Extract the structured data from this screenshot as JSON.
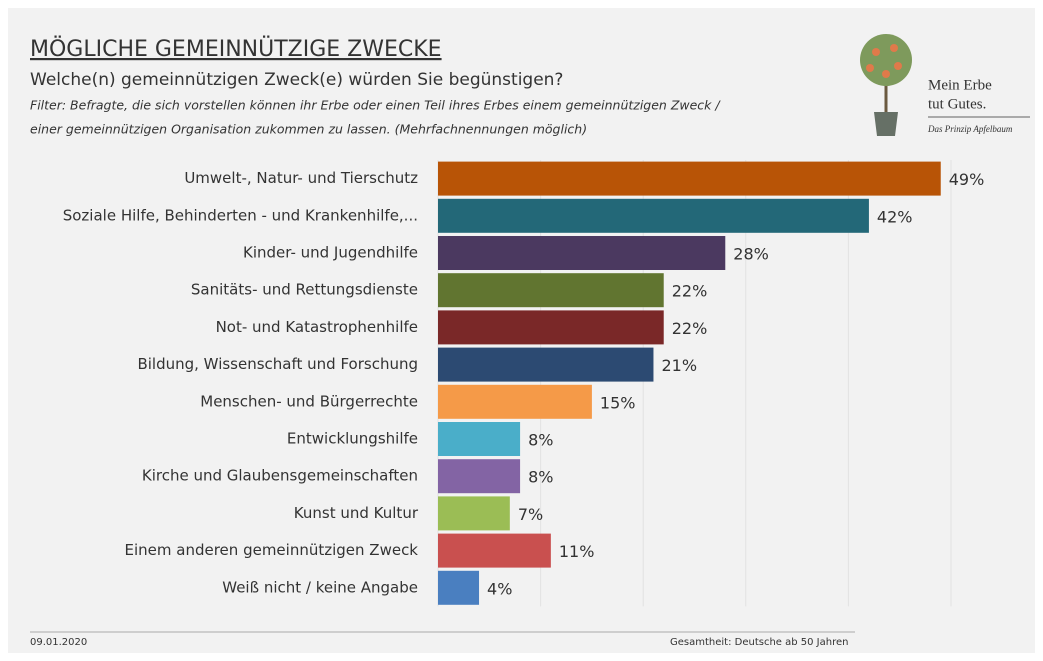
{
  "header": {
    "title": "MÖGLICHE GEMEINNÜTZIGE ZWECKE",
    "subtitle": "Welche(n) gemeinnützigen Zweck(e) würden Sie begünstigen?",
    "filter": [
      "Filter: Befragte, die sich vorstellen können ihr Erbe oder einen Teil ihres Erbes einem gemeinnützigen Zweck /",
      "einer gemeinnützigen Organisation zukommen zu lassen. (Mehrfachnennungen möglich)"
    ],
    "logo": [
      "Mein Erbe",
      "tut Gutes.",
      "Das Prinzip Apfelbaum"
    ]
  },
  "chart_data": {
    "type": "hbar",
    "categories": [
      "Umwelt-, Natur- und Tierschutz",
      "Soziale Hilfe, Behinderten - und Krankenhilfe,...",
      "Kinder- und Jugendhilfe",
      "Sanitäts- und Rettungsdienste",
      "Not- und Katastrophenhilfe",
      "Bildung, Wissenschaft und Forschung",
      "Menschen- und Bürgerrechte",
      "Entwicklungshilfe",
      "Kirche und Glaubensgemeinschaften",
      "Kunst und Kultur",
      "Einem anderen gemeinnützigen Zweck",
      "Weiß nicht / keine Angabe"
    ],
    "values": [
      49,
      42,
      28,
      22,
      22,
      21,
      15,
      8,
      8,
      7,
      11,
      4
    ],
    "value_labels": [
      "49%",
      "42%",
      "28%",
      "22%",
      "22%",
      "21%",
      "15%",
      "8%",
      "8%",
      "7%",
      "11%",
      "4%"
    ],
    "colors": [
      "#b85406",
      "#236878",
      "#4b3960",
      "#617530",
      "#7a2828",
      "#2c4a72",
      "#f59a48",
      "#4aaec9",
      "#8364a4",
      "#9bbd55",
      "#c9504f",
      "#4a7fc0"
    ],
    "xlim": [
      0,
      50
    ],
    "xticks": [
      0,
      10,
      20,
      30,
      40,
      50
    ],
    "grid": true
  },
  "footer": {
    "date": "09.01.2020",
    "note": "Gesamtheit: Deutsche ab 50 Jahren"
  }
}
